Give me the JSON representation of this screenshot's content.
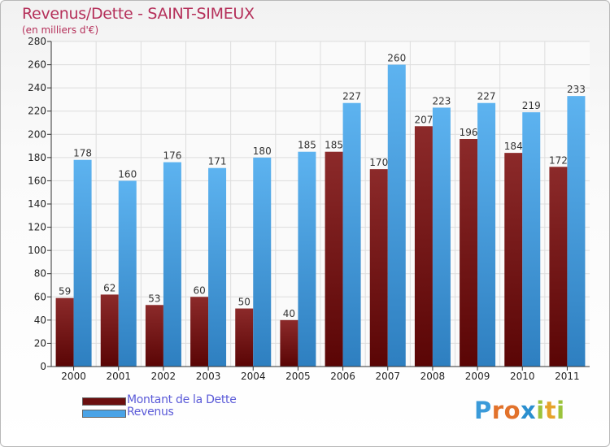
{
  "header": {
    "title": "Revenus/Dette - SAINT-SIMEUX",
    "subtitle": "(en milliers d'€)"
  },
  "chart_data": {
    "type": "bar",
    "categories": [
      "2000",
      "2001",
      "2002",
      "2003",
      "2004",
      "2005",
      "2006",
      "2007",
      "2008",
      "2009",
      "2010",
      "2011"
    ],
    "series": [
      {
        "name": "Montant de la Dette",
        "color": "#7a1a1a",
        "values": [
          59,
          62,
          53,
          60,
          50,
          40,
          185,
          170,
          207,
          196,
          184,
          172
        ]
      },
      {
        "name": "Revenus",
        "color": "#4aa3e6",
        "values": [
          178,
          160,
          176,
          171,
          180,
          185,
          227,
          260,
          223,
          227,
          219,
          233
        ]
      }
    ],
    "ylim": [
      0,
      280
    ],
    "yticks": [
      0,
      20,
      40,
      60,
      80,
      100,
      120,
      140,
      160,
      180,
      200,
      220,
      240,
      260,
      280
    ],
    "grid": true,
    "legend": "bottom-left"
  },
  "legend": {
    "items": [
      {
        "label": "Montant de la Dette",
        "color": "#6b0f0f"
      },
      {
        "label": "Revenus",
        "color": "#4aa3e6"
      }
    ]
  },
  "logo": {
    "letters": [
      {
        "ch": "P",
        "color": "#3a9ad9"
      },
      {
        "ch": "r",
        "color": "#e2722b"
      },
      {
        "ch": "o",
        "color": "#e2722b"
      },
      {
        "ch": "x",
        "color": "#2a8fcf"
      },
      {
        "ch": "i",
        "color": "#9bc33b"
      },
      {
        "ch": "t",
        "color": "#e5a32a"
      },
      {
        "ch": "i",
        "color": "#9bc33b"
      }
    ]
  }
}
